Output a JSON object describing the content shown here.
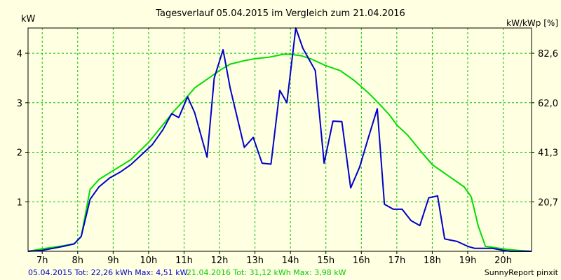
{
  "chart_data": {
    "type": "line",
    "title": "Tagesverlauf 05.04.2015 im Vergleich zum 21.04.2016",
    "ylabel_left": "kW",
    "ylabel_right": "kW/kWp [%]",
    "xlim": [
      6.6,
      20.8
    ],
    "ylim": [
      0,
      4.51
    ],
    "grid": true,
    "x_ticks": [
      7,
      8,
      9,
      10,
      11,
      12,
      13,
      14,
      15,
      16,
      17,
      18,
      19,
      20
    ],
    "x_tick_labels": [
      "7h",
      "8h",
      "9h",
      "10h",
      "11h",
      "12h",
      "13h",
      "14h",
      "15h",
      "16h",
      "17h",
      "18h",
      "19h",
      "20h"
    ],
    "y_ticks_left": [
      1,
      2,
      3,
      4
    ],
    "y_tick_labels_left": [
      "1",
      "2",
      "3",
      "4"
    ],
    "y_ticks_right": [
      1,
      2,
      3,
      4
    ],
    "y_tick_labels_right": [
      "20,7",
      "41,3",
      "62,0",
      "82,6"
    ],
    "series": [
      {
        "name": "05.04.2015",
        "color": "#0000cc",
        "x": [
          6.6,
          7.0,
          7.3,
          7.6,
          7.9,
          8.1,
          8.35,
          8.6,
          8.9,
          9.2,
          9.5,
          9.8,
          10.1,
          10.4,
          10.65,
          10.85,
          11.1,
          11.3,
          11.65,
          11.85,
          12.1,
          12.3,
          12.7,
          12.95,
          13.2,
          13.45,
          13.7,
          13.9,
          14.15,
          14.35,
          14.7,
          14.95,
          15.2,
          15.45,
          15.7,
          15.95,
          16.2,
          16.45,
          16.65,
          16.9,
          17.15,
          17.4,
          17.65,
          17.9,
          18.15,
          18.35,
          18.7,
          19.0,
          19.2,
          19.5,
          19.7,
          20.0,
          20.2,
          20.5,
          20.8
        ],
        "y": [
          0.0,
          0.02,
          0.06,
          0.1,
          0.15,
          0.3,
          1.05,
          1.3,
          1.48,
          1.6,
          1.75,
          1.95,
          2.15,
          2.45,
          2.78,
          2.7,
          3.12,
          2.8,
          1.9,
          3.5,
          4.07,
          3.3,
          2.1,
          2.3,
          1.78,
          1.76,
          3.25,
          3.0,
          4.51,
          4.1,
          3.65,
          1.78,
          2.63,
          2.62,
          1.28,
          1.7,
          2.3,
          2.88,
          0.95,
          0.85,
          0.85,
          0.62,
          0.52,
          1.08,
          1.12,
          0.25,
          0.2,
          0.1,
          0.06,
          0.06,
          0.06,
          0.02,
          0.0,
          0.0,
          0.0
        ]
      },
      {
        "name": "21.04.2016",
        "color": "#00dd00",
        "x": [
          6.6,
          7.0,
          7.5,
          7.9,
          8.1,
          8.35,
          8.6,
          9.0,
          9.5,
          10.0,
          10.4,
          10.7,
          11.0,
          11.3,
          11.7,
          12.0,
          12.3,
          12.7,
          13.0,
          13.4,
          13.8,
          14.0,
          14.3,
          14.6,
          15.0,
          15.4,
          15.8,
          16.2,
          16.5,
          16.8,
          17.0,
          17.3,
          17.7,
          18.0,
          18.3,
          18.6,
          18.9,
          19.1,
          19.3,
          19.5,
          19.8,
          20.1,
          20.4,
          20.8
        ],
        "y": [
          0.0,
          0.05,
          0.1,
          0.15,
          0.3,
          1.25,
          1.45,
          1.63,
          1.85,
          2.2,
          2.55,
          2.82,
          3.05,
          3.3,
          3.5,
          3.65,
          3.78,
          3.85,
          3.89,
          3.92,
          3.98,
          3.98,
          3.95,
          3.88,
          3.75,
          3.65,
          3.45,
          3.2,
          2.98,
          2.75,
          2.55,
          2.35,
          2.0,
          1.75,
          1.6,
          1.45,
          1.3,
          1.1,
          0.5,
          0.1,
          0.07,
          0.04,
          0.02,
          0.0
        ]
      }
    ]
  },
  "footer": {
    "info_blue": "05.04.2015 Tot: 22,26 kWh Max: 4,51 kW",
    "info_green": "21.04.2016 Tot: 31,12 kWh Max: 3,98 kW",
    "brand": "SunnyReport pinxit"
  }
}
